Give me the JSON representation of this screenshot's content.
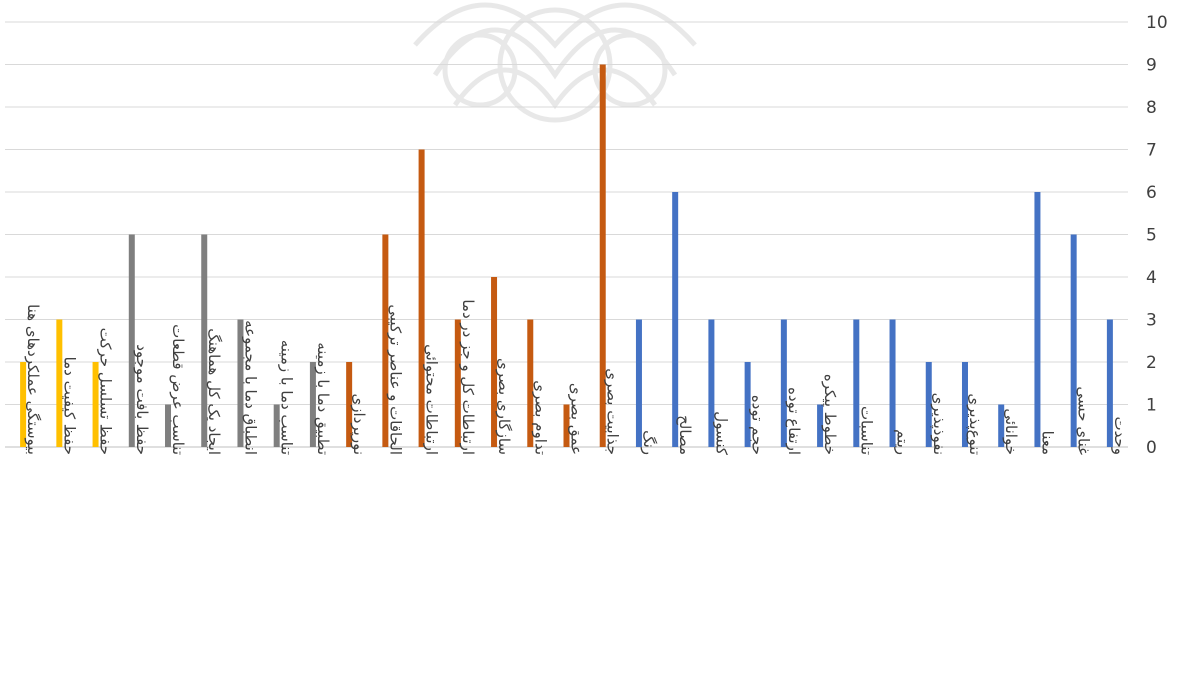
{
  "chart_data": {
    "type": "bar",
    "categories": [
      "بیوستگی عملکردهای هنا",
      "حفظ کیفیت دما",
      "حفظ تسلسل حرکت",
      "حفظ بافت موجود",
      "تناسب عرض قطعات",
      "ایجاد یک کل هماهنگ",
      "انطباق دما با مجموعه",
      "تناسب دما با زمینه",
      "تطبیق دما با زمینه",
      "نورپردازی",
      "الحاقات و عناصر ترکیبی",
      "ارتباطات محتوائی",
      "ارتباطات کل و جز در دما",
      "سازگاری بصری",
      "تداوم بصری",
      "عمق بصری",
      "جذابیت بصری",
      "رنگ",
      "مصالح",
      "کنسول",
      "حجم توده",
      "ارتفاع توده",
      "خطوط پیکره",
      "تناسبات",
      "ریتم",
      "نفوذپذیری",
      "تنوع‌پذیری",
      "خوانائی",
      "معنا",
      "غنای حسی",
      "وحدت"
    ],
    "values": [
      2,
      3,
      2,
      5,
      1,
      5,
      3,
      1,
      2,
      2,
      5,
      7,
      3,
      4,
      3,
      1,
      9,
      3,
      6,
      3,
      2,
      3,
      1,
      3,
      3,
      2,
      2,
      1,
      6,
      5,
      3
    ],
    "groups": [
      {
        "color": "#FFC000",
        "count": 3
      },
      {
        "color": "#7F7F7F",
        "count": 6
      },
      {
        "color": "#C55A11",
        "count": 8
      },
      {
        "color": "#4472C4",
        "count": 14
      }
    ],
    "y_ticks": [
      "0",
      "1",
      "2",
      "3",
      "4",
      "5",
      "6",
      "7",
      "8",
      "9",
      "10"
    ],
    "ylim": [
      0,
      10
    ],
    "y_axis_side": "right",
    "grid": true,
    "gridline_color": "#D9D9D9"
  }
}
